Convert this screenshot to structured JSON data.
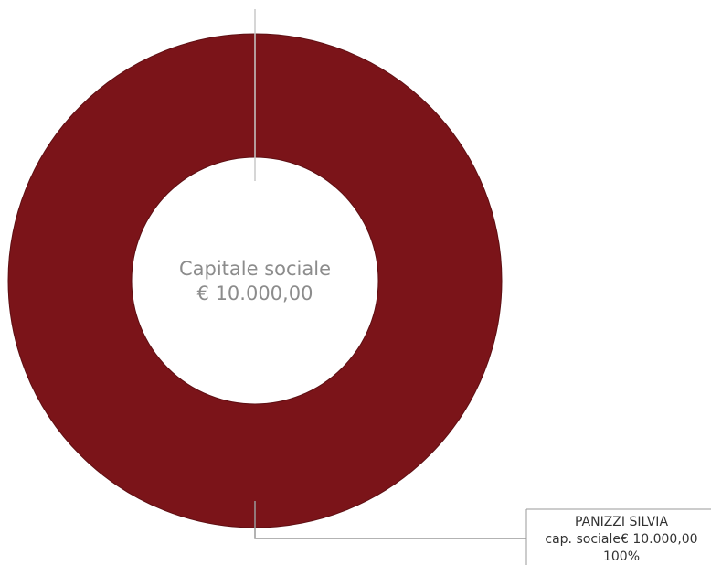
{
  "chart_data": {
    "type": "pie",
    "donut": true,
    "center_label": {
      "title": "Capitale sociale",
      "value": "€ 10.000,00"
    },
    "slices": [
      {
        "name": "PANIZZI SILVIA",
        "value": 10000,
        "detail": "cap. sociale€ 10.000,00",
        "percent_label": "100%",
        "color": "#7b1419"
      }
    ],
    "legend": "none"
  },
  "colors": {
    "slice_border": "#5e0f13",
    "leader_line": "#c8c8c8",
    "center_text": "#8c8c8c"
  }
}
